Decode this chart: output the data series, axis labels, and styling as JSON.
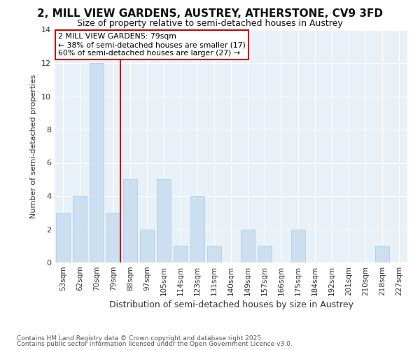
{
  "title1": "2, MILL VIEW GARDENS, AUSTREY, ATHERSTONE, CV9 3FD",
  "title2": "Size of property relative to semi-detached houses in Austrey",
  "xlabel": "Distribution of semi-detached houses by size in Austrey",
  "ylabel": "Number of semi-detached properties",
  "categories": [
    "53sqm",
    "62sqm",
    "70sqm",
    "79sqm",
    "88sqm",
    "97sqm",
    "105sqm",
    "114sqm",
    "123sqm",
    "131sqm",
    "140sqm",
    "149sqm",
    "157sqm",
    "166sqm",
    "175sqm",
    "184sqm",
    "192sqm",
    "201sqm",
    "210sqm",
    "218sqm",
    "227sqm"
  ],
  "values": [
    3,
    4,
    12,
    3,
    5,
    2,
    5,
    1,
    4,
    1,
    0,
    2,
    1,
    0,
    2,
    0,
    0,
    0,
    0,
    1,
    0
  ],
  "property_line_index": 3,
  "bar_color": "#ccdff0",
  "bar_edge_color": "#aac8e0",
  "line_color": "#cc0000",
  "annotation_line1": "2 MILL VIEW GARDENS: 79sqm",
  "annotation_line2": "← 38% of semi-detached houses are smaller (17)",
  "annotation_line3": "60% of semi-detached houses are larger (27) →",
  "annotation_box_color": "#cc0000",
  "ylim": [
    0,
    14
  ],
  "yticks": [
    0,
    2,
    4,
    6,
    8,
    10,
    12,
    14
  ],
  "footnote1": "Contains HM Land Registry data © Crown copyright and database right 2025.",
  "footnote2": "Contains public sector information licensed under the Open Government Licence v3.0.",
  "fig_background": "#ffffff",
  "plot_background": "#e8f0f8"
}
